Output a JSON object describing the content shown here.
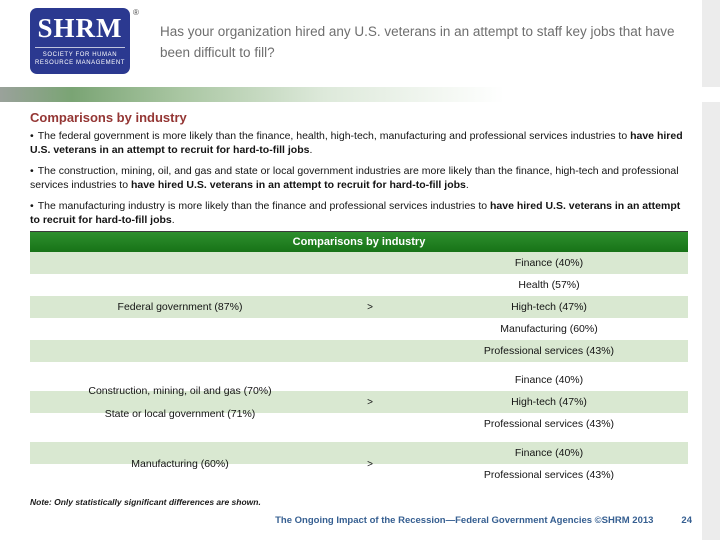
{
  "slide": {
    "logo": {
      "acronym": "SHRM",
      "registered": "®",
      "tagline1": "SOCIETY FOR HUMAN",
      "tagline2": "RESOURCE MANAGEMENT"
    },
    "title": "Has your organization hired any U.S. veterans in an attempt to staff key jobs that have been difficult to fill?",
    "section_heading": "Comparisons by industry",
    "bullet_marker": "•",
    "bullets": [
      {
        "normal": "The federal government is more likely than the finance, health, high-tech, manufacturing and professional services industries to ",
        "bold": "have hired U.S. veterans in an attempt to recruit for hard-to-fill jobs",
        "tail": "."
      },
      {
        "normal": "The construction, mining, oil, and gas and state or local government industries are more likely than the finance, high-tech and professional services industries to ",
        "bold": "have hired U.S. veterans in an attempt to recruit for hard-to-fill jobs",
        "tail": "."
      },
      {
        "normal": "The manufacturing industry is more likely than the finance and professional services industries to ",
        "bold": "have hired U.S. veterans in an attempt to recruit for hard-to-fill jobs",
        "tail": "."
      }
    ],
    "table": {
      "header": "Comparisons by industry",
      "groups": [
        {
          "left": [
            "Federal government (87%)"
          ],
          "symbol": ">",
          "right": [
            "Finance (40%)",
            "Health (57%)",
            "High-tech (47%)",
            "Manufacturing (60%)",
            "Professional services (43%)"
          ]
        },
        {
          "left": [
            "Construction, mining, oil and gas (70%)",
            "State or local government (71%)"
          ],
          "symbol": ">",
          "right": [
            "Finance (40%)",
            "High-tech (47%)",
            "Professional services (43%)"
          ]
        },
        {
          "left": [
            "Manufacturing (60%)"
          ],
          "symbol": ">",
          "right": [
            "Finance (40%)",
            "Professional services (43%)"
          ]
        }
      ]
    },
    "note": "Note: Only statistically significant differences are shown.",
    "footer": {
      "text": "The Ongoing Impact of the Recession—Federal Government Agencies ©SHRM 2013",
      "page": "24"
    }
  },
  "colors": {
    "header_green": "#1e7d1e",
    "stripe_green": "#d9e8d1",
    "heading_red": "#943634",
    "footer_blue": "#365f91",
    "logo_blue": "#2b3990"
  }
}
